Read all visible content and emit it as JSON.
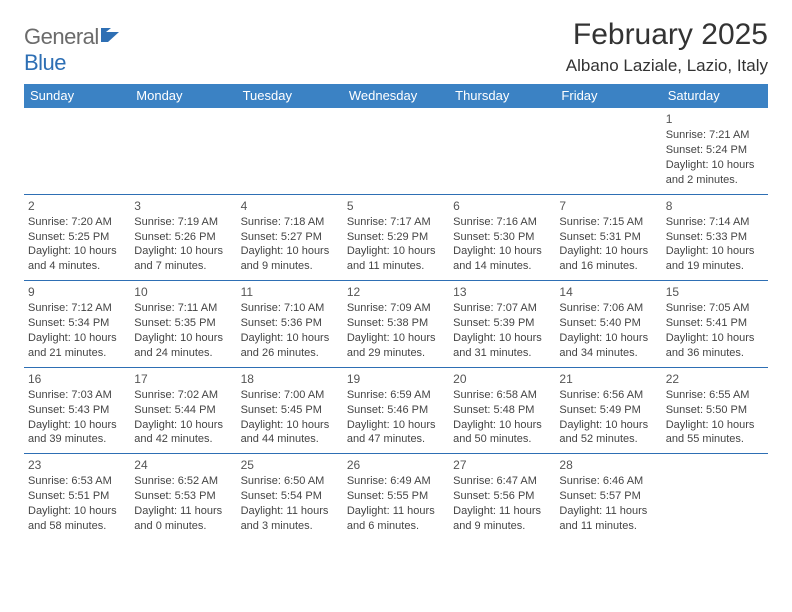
{
  "logo": {
    "text1": "General",
    "text2": "Blue"
  },
  "title": "February 2025",
  "location": "Albano Laziale, Lazio, Italy",
  "colors": {
    "header_bg": "#3b82c4",
    "header_text": "#ffffff",
    "rule": "#2e6fb4",
    "logo_gray": "#6b6b6b",
    "logo_blue": "#2e6fb4",
    "body_text": "#444444"
  },
  "daysOfWeek": [
    "Sunday",
    "Monday",
    "Tuesday",
    "Wednesday",
    "Thursday",
    "Friday",
    "Saturday"
  ],
  "weeks": [
    [
      null,
      null,
      null,
      null,
      null,
      null,
      {
        "n": "1",
        "sunrise": "7:21 AM",
        "sunset": "5:24 PM",
        "daylight": "10 hours and 2 minutes."
      }
    ],
    [
      {
        "n": "2",
        "sunrise": "7:20 AM",
        "sunset": "5:25 PM",
        "daylight": "10 hours and 4 minutes."
      },
      {
        "n": "3",
        "sunrise": "7:19 AM",
        "sunset": "5:26 PM",
        "daylight": "10 hours and 7 minutes."
      },
      {
        "n": "4",
        "sunrise": "7:18 AM",
        "sunset": "5:27 PM",
        "daylight": "10 hours and 9 minutes."
      },
      {
        "n": "5",
        "sunrise": "7:17 AM",
        "sunset": "5:29 PM",
        "daylight": "10 hours and 11 minutes."
      },
      {
        "n": "6",
        "sunrise": "7:16 AM",
        "sunset": "5:30 PM",
        "daylight": "10 hours and 14 minutes."
      },
      {
        "n": "7",
        "sunrise": "7:15 AM",
        "sunset": "5:31 PM",
        "daylight": "10 hours and 16 minutes."
      },
      {
        "n": "8",
        "sunrise": "7:14 AM",
        "sunset": "5:33 PM",
        "daylight": "10 hours and 19 minutes."
      }
    ],
    [
      {
        "n": "9",
        "sunrise": "7:12 AM",
        "sunset": "5:34 PM",
        "daylight": "10 hours and 21 minutes."
      },
      {
        "n": "10",
        "sunrise": "7:11 AM",
        "sunset": "5:35 PM",
        "daylight": "10 hours and 24 minutes."
      },
      {
        "n": "11",
        "sunrise": "7:10 AM",
        "sunset": "5:36 PM",
        "daylight": "10 hours and 26 minutes."
      },
      {
        "n": "12",
        "sunrise": "7:09 AM",
        "sunset": "5:38 PM",
        "daylight": "10 hours and 29 minutes."
      },
      {
        "n": "13",
        "sunrise": "7:07 AM",
        "sunset": "5:39 PM",
        "daylight": "10 hours and 31 minutes."
      },
      {
        "n": "14",
        "sunrise": "7:06 AM",
        "sunset": "5:40 PM",
        "daylight": "10 hours and 34 minutes."
      },
      {
        "n": "15",
        "sunrise": "7:05 AM",
        "sunset": "5:41 PM",
        "daylight": "10 hours and 36 minutes."
      }
    ],
    [
      {
        "n": "16",
        "sunrise": "7:03 AM",
        "sunset": "5:43 PM",
        "daylight": "10 hours and 39 minutes."
      },
      {
        "n": "17",
        "sunrise": "7:02 AM",
        "sunset": "5:44 PM",
        "daylight": "10 hours and 42 minutes."
      },
      {
        "n": "18",
        "sunrise": "7:00 AM",
        "sunset": "5:45 PM",
        "daylight": "10 hours and 44 minutes."
      },
      {
        "n": "19",
        "sunrise": "6:59 AM",
        "sunset": "5:46 PM",
        "daylight": "10 hours and 47 minutes."
      },
      {
        "n": "20",
        "sunrise": "6:58 AM",
        "sunset": "5:48 PM",
        "daylight": "10 hours and 50 minutes."
      },
      {
        "n": "21",
        "sunrise": "6:56 AM",
        "sunset": "5:49 PM",
        "daylight": "10 hours and 52 minutes."
      },
      {
        "n": "22",
        "sunrise": "6:55 AM",
        "sunset": "5:50 PM",
        "daylight": "10 hours and 55 minutes."
      }
    ],
    [
      {
        "n": "23",
        "sunrise": "6:53 AM",
        "sunset": "5:51 PM",
        "daylight": "10 hours and 58 minutes."
      },
      {
        "n": "24",
        "sunrise": "6:52 AM",
        "sunset": "5:53 PM",
        "daylight": "11 hours and 0 minutes."
      },
      {
        "n": "25",
        "sunrise": "6:50 AM",
        "sunset": "5:54 PM",
        "daylight": "11 hours and 3 minutes."
      },
      {
        "n": "26",
        "sunrise": "6:49 AM",
        "sunset": "5:55 PM",
        "daylight": "11 hours and 6 minutes."
      },
      {
        "n": "27",
        "sunrise": "6:47 AM",
        "sunset": "5:56 PM",
        "daylight": "11 hours and 9 minutes."
      },
      {
        "n": "28",
        "sunrise": "6:46 AM",
        "sunset": "5:57 PM",
        "daylight": "11 hours and 11 minutes."
      },
      null
    ]
  ],
  "labels": {
    "sunrise": "Sunrise: ",
    "sunset": "Sunset: ",
    "daylight": "Daylight: "
  }
}
